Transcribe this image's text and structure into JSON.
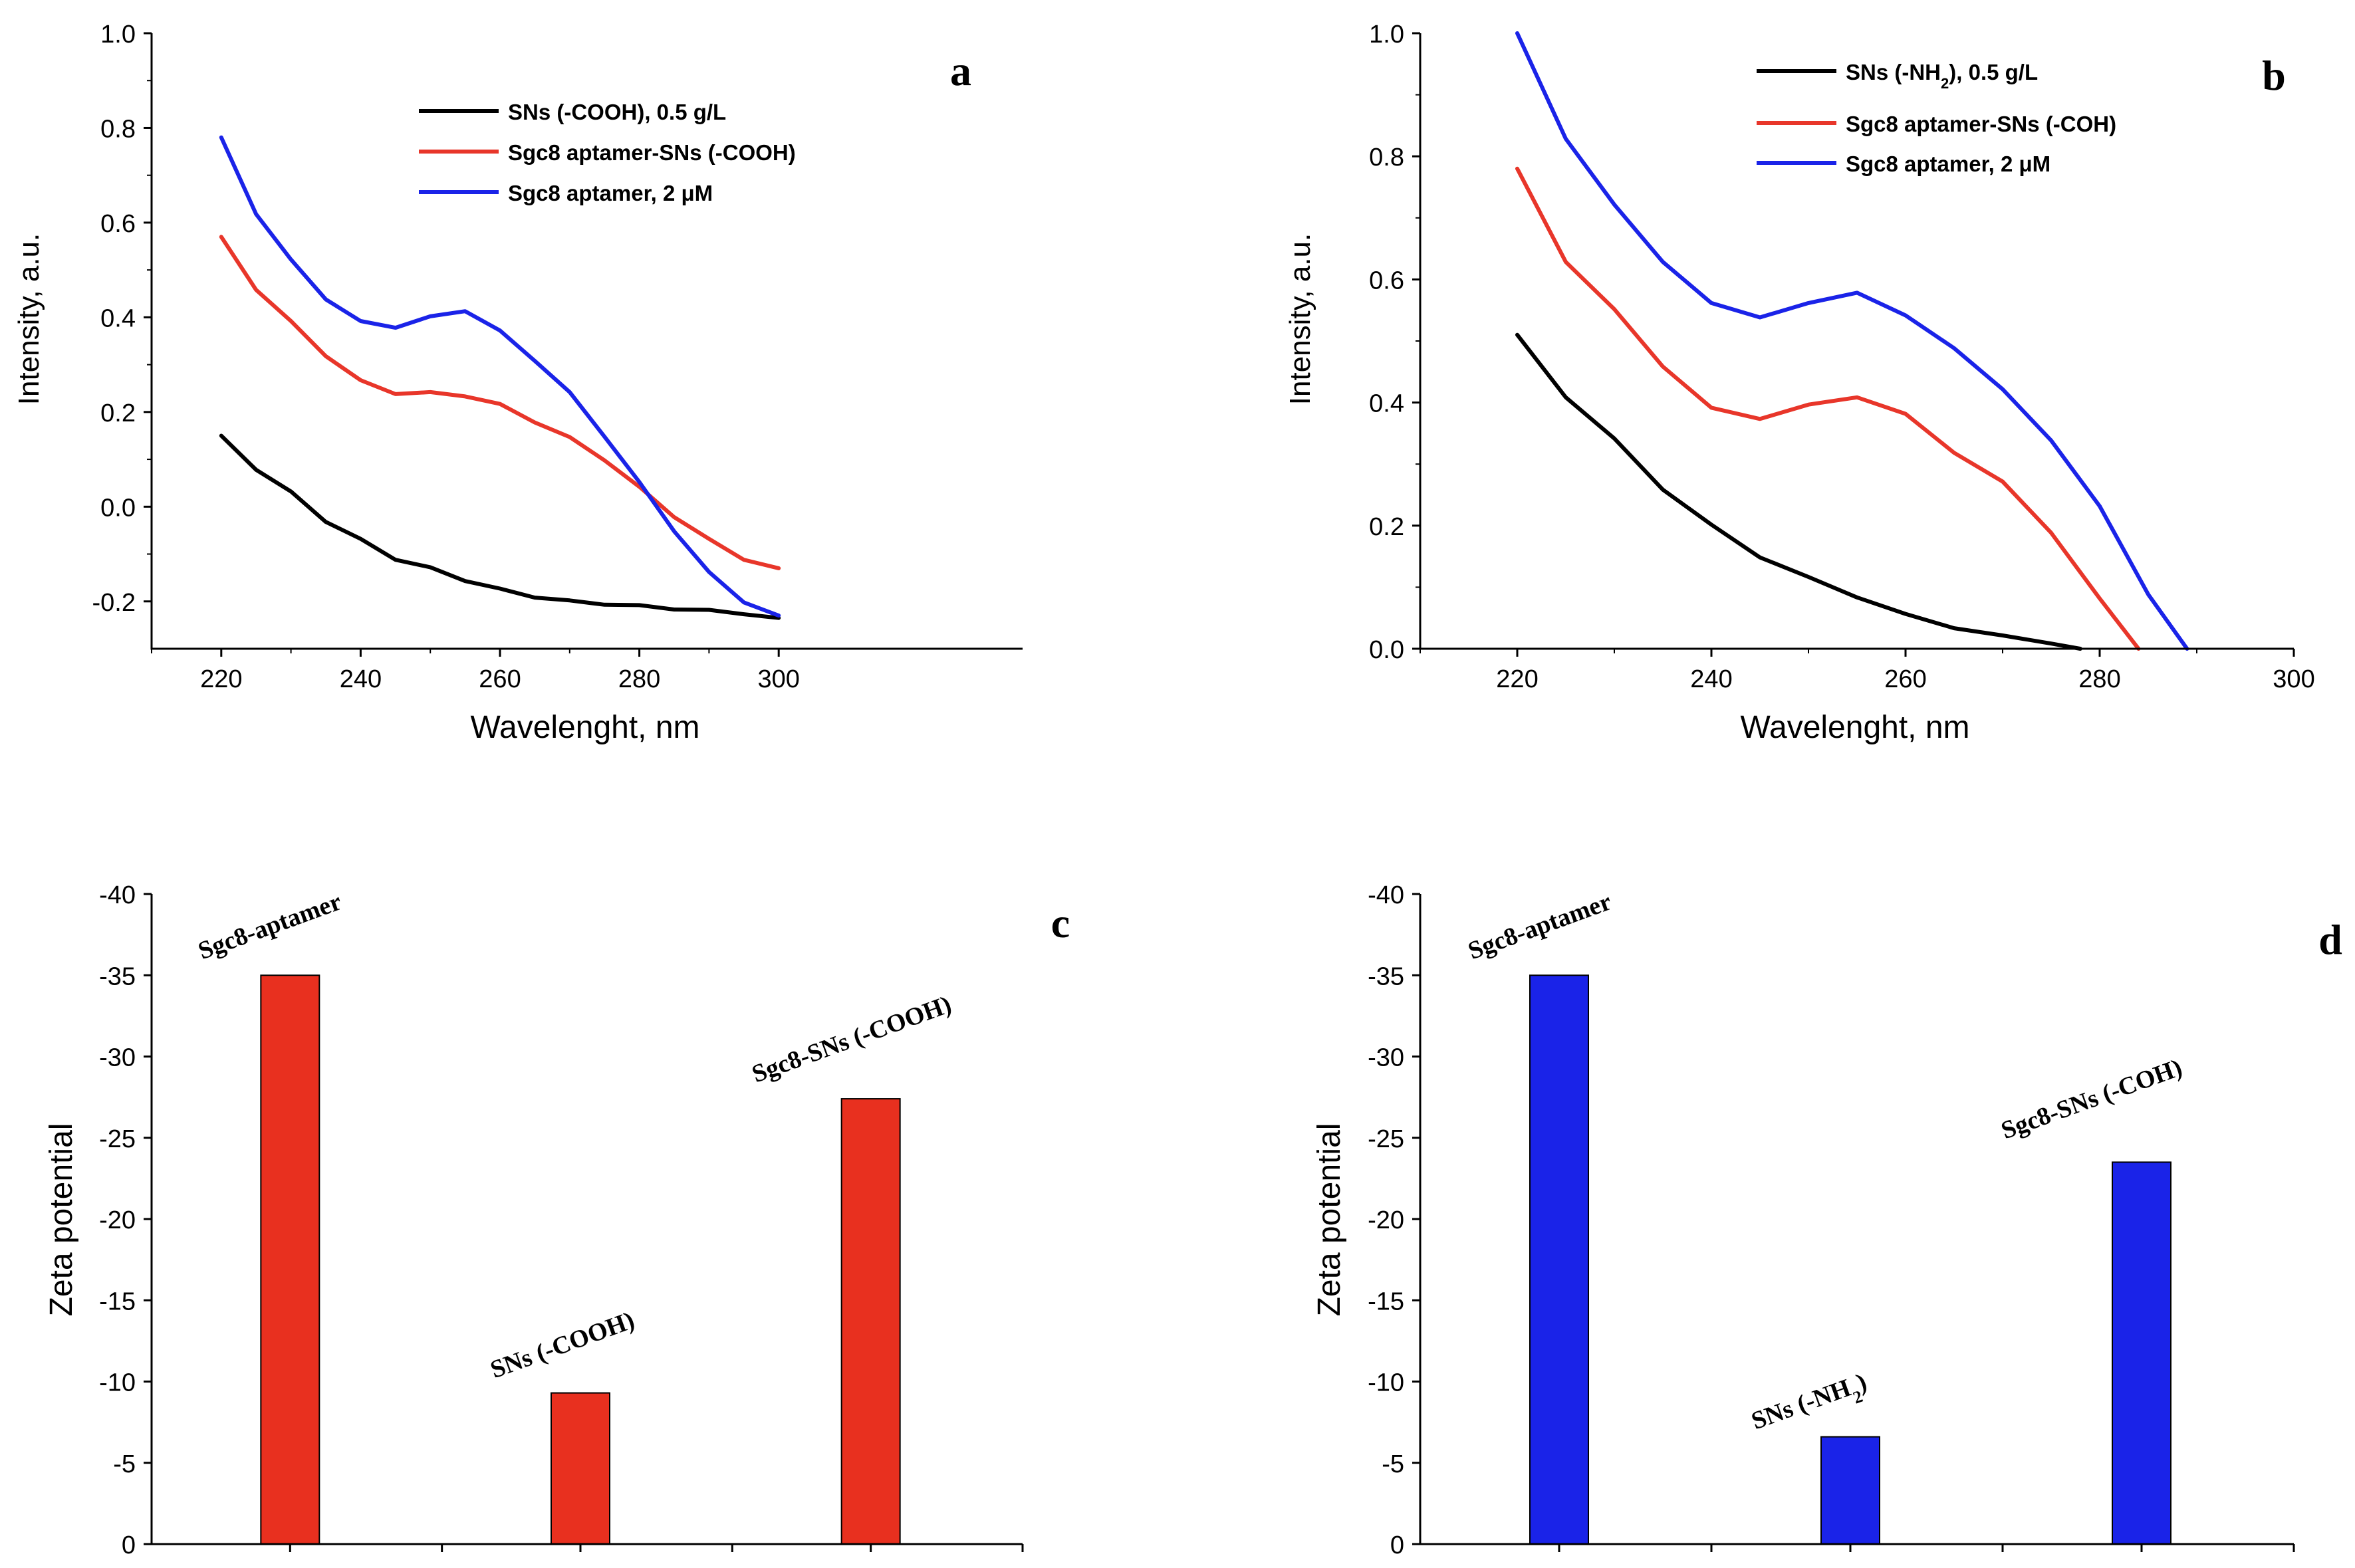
{
  "chart_data": [
    {
      "type": "line",
      "panel_label": "a",
      "xlabel": "Wavelenght, nm",
      "ylabel": "Intensity, a.u.",
      "xlim": [
        210,
        335
      ],
      "ylim": [
        -0.3,
        1.0
      ],
      "xticks": [
        220,
        240,
        260,
        280,
        300
      ],
      "yticks": [
        -0.2,
        0.0,
        0.2,
        0.4,
        0.6,
        0.8,
        1.0
      ],
      "ytick_labels": [
        "-0.2",
        "0.0",
        "0.2",
        "0.4",
        "0.6",
        "0.8",
        "1.0"
      ],
      "series": [
        {
          "name": "SNs (-COOH), 0.5 g/L",
          "color": "#000000",
          "x": [
            220,
            225,
            230,
            235,
            240,
            245,
            250,
            255,
            260,
            265,
            270,
            275,
            280,
            285,
            290,
            295,
            300
          ],
          "y": [
            0.15,
            0.08,
            0.03,
            -0.03,
            -0.07,
            -0.11,
            -0.13,
            -0.155,
            -0.175,
            -0.19,
            -0.2,
            -0.205,
            -0.21,
            -0.215,
            -0.22,
            -0.225,
            -0.235
          ]
        },
        {
          "name": "Sgc8 aptamer-SNs (-COOH)",
          "color": "#e8362a",
          "x": [
            220,
            225,
            230,
            235,
            240,
            245,
            250,
            255,
            260,
            265,
            270,
            275,
            280,
            285,
            290,
            295,
            300
          ],
          "y": [
            0.57,
            0.46,
            0.39,
            0.32,
            0.265,
            0.24,
            0.24,
            0.235,
            0.215,
            0.18,
            0.145,
            0.1,
            0.04,
            -0.02,
            -0.07,
            -0.11,
            -0.13
          ]
        },
        {
          "name": "Sgc8 aptamer, 2 μM",
          "color": "#1a23e8",
          "x": [
            220,
            225,
            230,
            235,
            240,
            245,
            250,
            255,
            260,
            265,
            270,
            275,
            280,
            285,
            290,
            295,
            300
          ],
          "y": [
            0.78,
            0.62,
            0.52,
            0.44,
            0.39,
            0.38,
            0.4,
            0.415,
            0.37,
            0.31,
            0.24,
            0.15,
            0.05,
            -0.05,
            -0.14,
            -0.2,
            -0.23
          ]
        }
      ]
    },
    {
      "type": "line",
      "panel_label": "b",
      "xlabel": "Wavelenght, nm",
      "ylabel": "Intensity, a.u.",
      "xlim": [
        210,
        300
      ],
      "ylim": [
        0.0,
        1.0
      ],
      "xticks": [
        220,
        240,
        260,
        280,
        300
      ],
      "yticks": [
        0.0,
        0.2,
        0.4,
        0.6,
        0.8,
        1.0
      ],
      "ytick_labels": [
        "0.0",
        "0.2",
        "0.4",
        "0.6",
        "0.8",
        "1.0"
      ],
      "series": [
        {
          "name": "SNs (-NH2), 0.5 g/L",
          "color": "#000000",
          "x": [
            220,
            225,
            230,
            235,
            240,
            245,
            250,
            255,
            260,
            265,
            270,
            275,
            278
          ],
          "y": [
            0.51,
            0.41,
            0.34,
            0.26,
            0.2,
            0.15,
            0.115,
            0.085,
            0.055,
            0.035,
            0.02,
            0.01,
            0.0
          ]
        },
        {
          "name": "Sgc8 aptamer-SNs (-COH)",
          "color": "#e8362a",
          "x": [
            220,
            225,
            230,
            235,
            240,
            245,
            250,
            255,
            260,
            265,
            270,
            275,
            280,
            284
          ],
          "y": [
            0.78,
            0.63,
            0.55,
            0.46,
            0.39,
            0.375,
            0.395,
            0.41,
            0.38,
            0.32,
            0.27,
            0.19,
            0.08,
            0.0
          ]
        },
        {
          "name": "Sgc8 aptamer, 2 μM",
          "color": "#1a23e8",
          "x": [
            220,
            225,
            230,
            235,
            240,
            245,
            250,
            255,
            260,
            265,
            270,
            275,
            280,
            285,
            289
          ],
          "y": [
            1.0,
            0.83,
            0.72,
            0.63,
            0.56,
            0.54,
            0.56,
            0.58,
            0.54,
            0.49,
            0.42,
            0.34,
            0.23,
            0.09,
            0.0
          ]
        }
      ]
    },
    {
      "type": "bar",
      "panel_label": "c",
      "ylabel": "Zeta potential",
      "ylim": [
        0,
        -40
      ],
      "yticks": [
        0,
        -5,
        -10,
        -15,
        -20,
        -25,
        -30,
        -35,
        -40
      ],
      "ytick_labels": [
        "0",
        "-5",
        "-10",
        "-15",
        "-20",
        "-25",
        "-30",
        "-35",
        "-40"
      ],
      "bar_color": "#e8301f",
      "categories": [
        {
          "main": "Sgc8-aptamer",
          "sub": "",
          "tail": ""
        },
        {
          "main": "SNs (-COOH)",
          "sub": "",
          "tail": ""
        },
        {
          "main": "Sgc8-SNs (-COOH)",
          "sub": "",
          "tail": ""
        }
      ],
      "values": [
        -35,
        -9.3,
        -27.4
      ]
    },
    {
      "type": "bar",
      "panel_label": "d",
      "ylabel": "Zeta potential",
      "ylim": [
        0,
        -40
      ],
      "yticks": [
        0,
        -5,
        -10,
        -15,
        -20,
        -25,
        -30,
        -35,
        -40
      ],
      "ytick_labels": [
        "0",
        "-5",
        "-10",
        "-15",
        "-20",
        "-25",
        "-30",
        "-35",
        "-40"
      ],
      "bar_color": "#1a23e8",
      "categories": [
        {
          "main": "Sgc8-aptamer",
          "sub": "",
          "tail": ""
        },
        {
          "main": "SNs (-NH",
          "sub": "2",
          "tail": ")"
        },
        {
          "main": "Sgc8-SNs (-COH)",
          "sub": "",
          "tail": ""
        }
      ],
      "values": [
        -35,
        -6.6,
        -23.5
      ]
    }
  ],
  "legends": {
    "a": [
      {
        "main": "SNs (-COOH), 0.5 g/L",
        "sub": "",
        "tail": ""
      },
      {
        "main": "Sgc8 aptamer-SNs (-COOH)",
        "sub": "",
        "tail": ""
      },
      {
        "main": "Sgc8 aptamer, 2 μM",
        "sub": "",
        "tail": ""
      }
    ],
    "b": [
      {
        "main": "SNs (-NH",
        "sub": "2",
        "tail": "), 0.5 g/L"
      },
      {
        "main": "Sgc8 aptamer-SNs (-COH)",
        "sub": "",
        "tail": ""
      },
      {
        "main": "Sgc8 aptamer, 2 μM",
        "sub": "",
        "tail": ""
      }
    ]
  }
}
